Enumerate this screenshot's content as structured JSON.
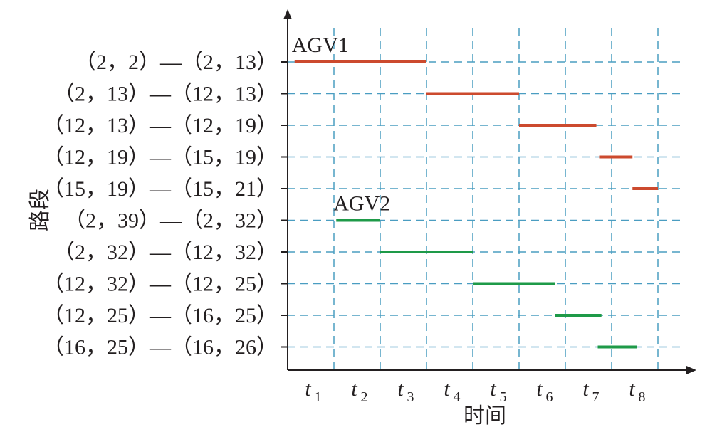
{
  "chart_data": {
    "type": "gantt",
    "xlabel": "时间",
    "ylabel": "路段",
    "x_ticks": [
      {
        "t": "t",
        "sub": "1"
      },
      {
        "t": "t",
        "sub": "2"
      },
      {
        "t": "t",
        "sub": "3"
      },
      {
        "t": "t",
        "sub": "4"
      },
      {
        "t": "t",
        "sub": "5"
      },
      {
        "t": "t",
        "sub": "6"
      },
      {
        "t": "t",
        "sub": "7"
      },
      {
        "t": "t",
        "sub": "8"
      }
    ],
    "categories": [
      "（2，2）—（2，13）",
      "（2，13）—（12，13）",
      "（12，13）—（12，19）",
      "（12，19）—（15，19）",
      "（15，19）—（15，21）",
      "（2，39）—（2，32）",
      "（2，32）—（12，32）",
      "（12，32）—（12，25）",
      "（12，25）—（16，25）",
      "（16，25）—（16，26）"
    ],
    "xlim": [
      0,
      8.5
    ],
    "grid": true,
    "series": [
      {
        "name": "AGV1",
        "color": "#cc4a2e",
        "segments": [
          {
            "row": 0,
            "start": 0.15,
            "end": 3.0
          },
          {
            "row": 1,
            "start": 3.0,
            "end": 5.0
          },
          {
            "row": 2,
            "start": 5.0,
            "end": 6.67
          },
          {
            "row": 3,
            "start": 6.73,
            "end": 7.45
          },
          {
            "row": 4,
            "start": 7.45,
            "end": 8.0
          }
        ]
      },
      {
        "name": "AGV2",
        "color": "#1e9a48",
        "segments": [
          {
            "row": 5,
            "start": 1.05,
            "end": 2.0
          },
          {
            "row": 6,
            "start": 2.0,
            "end": 4.0
          },
          {
            "row": 7,
            "start": 4.0,
            "end": 5.77
          },
          {
            "row": 8,
            "start": 5.77,
            "end": 6.78
          },
          {
            "row": 9,
            "start": 6.7,
            "end": 7.55
          }
        ]
      }
    ]
  }
}
